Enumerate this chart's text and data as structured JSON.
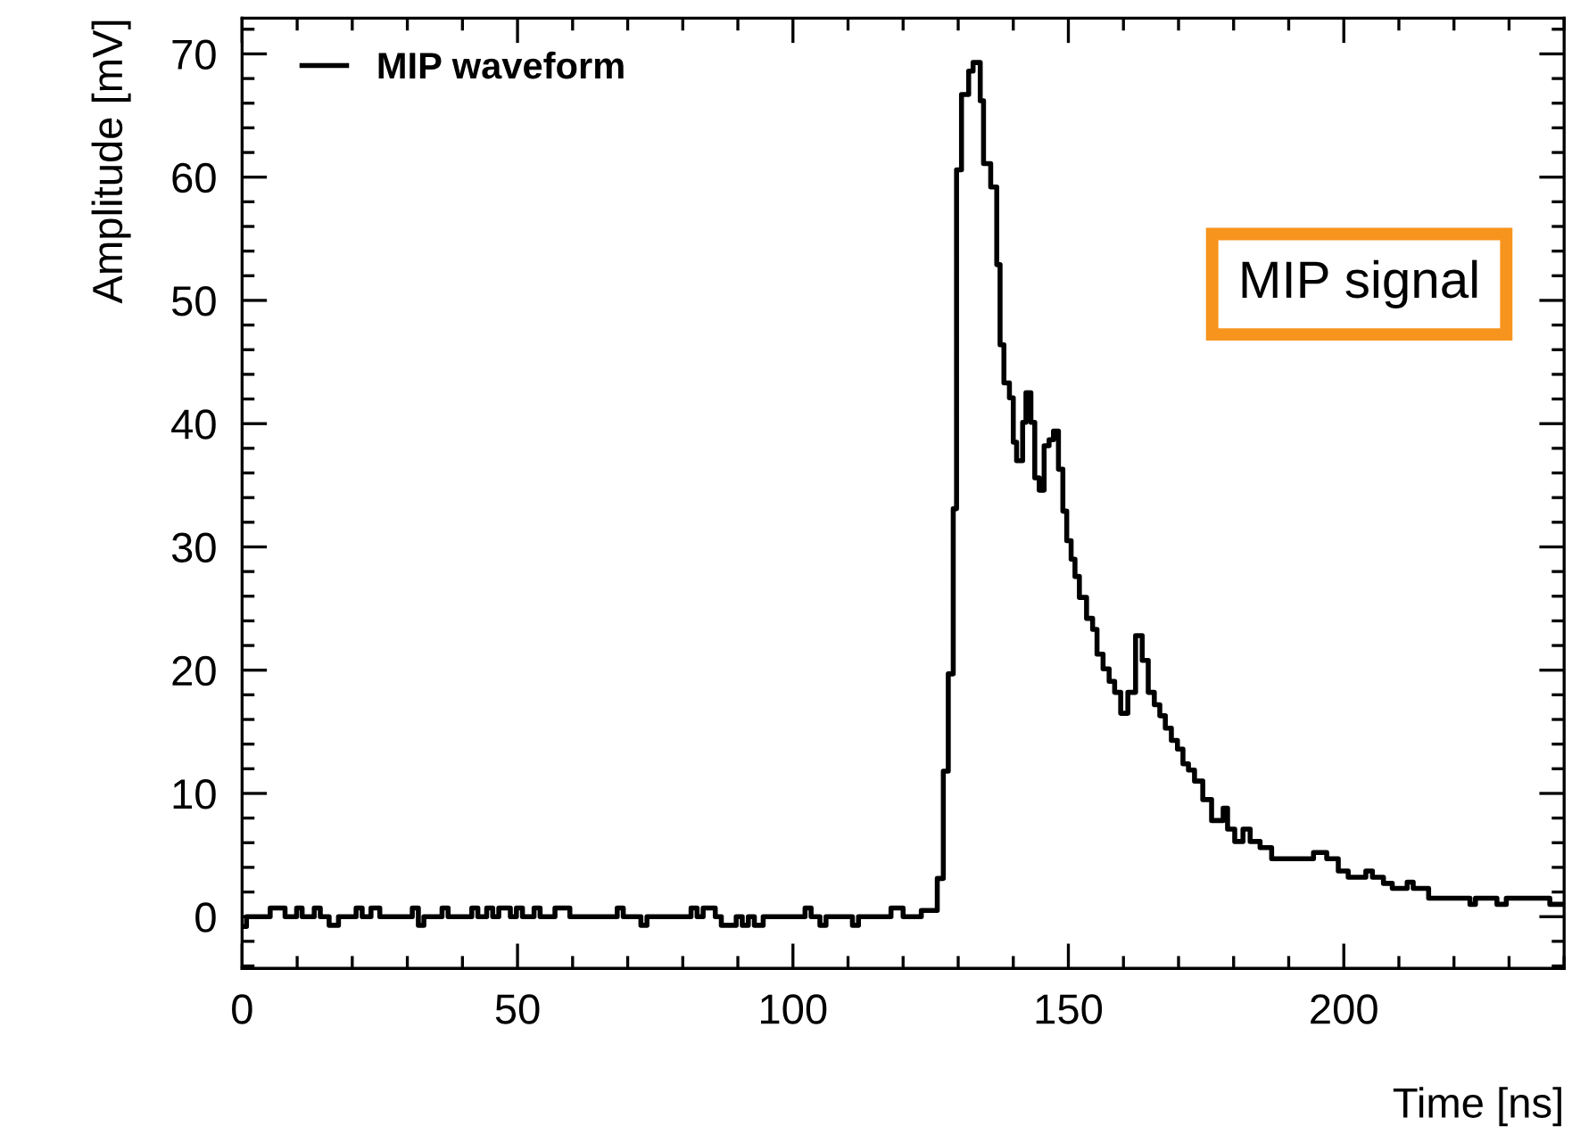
{
  "chart_data": {
    "type": "step",
    "xlabel": "Time [ns]",
    "ylabel": "Amplitude [mV]",
    "x": [
      0,
      0.8,
      5.1,
      7.8,
      9.9,
      10.9,
      13.1,
      14.2,
      15.8,
      17.5,
      20.7,
      21.8,
      23.4,
      25,
      30.9,
      32,
      33,
      36.3,
      37.4,
      41.7,
      42.8,
      44.4,
      45.5,
      46.6,
      48.7,
      49.8,
      50.9,
      53,
      54.1,
      56.8,
      59.5,
      68.1,
      69.2,
      72.4,
      73.5,
      81.5,
      82.6,
      83.7,
      85.9,
      87,
      89.7,
      90.8,
      91.9,
      93,
      94.6,
      102.2,
      103.3,
      104.9,
      106,
      110.8,
      111.9,
      117.8,
      120,
      123.3,
      126.2,
      127.3,
      128.2,
      129.1,
      129.7,
      130.6,
      131.9,
      132.7,
      134,
      134.6,
      135.9,
      137,
      137.6,
      138.3,
      139.3,
      140,
      140.6,
      141.7,
      142.3,
      143.2,
      143.9,
      144.7,
      145.6,
      146.5,
      147.3,
      148.2,
      149,
      149.7,
      150.5,
      151.2,
      152,
      153.3,
      154.4,
      155.2,
      156.3,
      157.4,
      158.4,
      159.5,
      160.8,
      162.2,
      163.4,
      164.5,
      165.6,
      166.6,
      167.6,
      168.7,
      169.8,
      170.8,
      171.8,
      172.9,
      174.4,
      176,
      178.1,
      178.9,
      180.2,
      181.7,
      183,
      184.8,
      186.9,
      194.5,
      196.9,
      199,
      200.8,
      204,
      205.2,
      207.2,
      208.8,
      211.5,
      212.6,
      215.4,
      222.9,
      223.9,
      227.8,
      229.5,
      237.4,
      240
    ],
    "series": [
      {
        "name": "MIP waveform",
        "color": "#000000",
        "values": [
          -0.8,
          0,
          0.7,
          0,
          0.7,
          0,
          0.7,
          0,
          -0.7,
          0,
          0.7,
          0,
          0.7,
          0,
          0.7,
          -0.7,
          0,
          0.7,
          0,
          0.7,
          0,
          0.7,
          0,
          0.7,
          0,
          0.7,
          0,
          0.7,
          0,
          0.7,
          0,
          0.7,
          0,
          -0.7,
          0,
          0.7,
          0,
          0.7,
          0,
          -0.7,
          0,
          -0.7,
          0,
          -0.7,
          0,
          0.7,
          0,
          -0.7,
          0,
          -0.7,
          0,
          0.7,
          0,
          0.5,
          3.1,
          11.8,
          19.7,
          33.1,
          60.6,
          66.7,
          68.6,
          69.3,
          66.2,
          61.1,
          59.2,
          52.9,
          46.4,
          43.3,
          42.1,
          38.5,
          37,
          40.1,
          42.5,
          40.1,
          35.6,
          34.6,
          38.2,
          38.7,
          39.4,
          36.3,
          32.9,
          30.5,
          29,
          27.6,
          25.9,
          24.2,
          23.3,
          21.3,
          20.1,
          19.1,
          18.2,
          16.5,
          18.2,
          22.8,
          20.8,
          18.2,
          17.2,
          16.3,
          15.3,
          14.3,
          13.6,
          12.4,
          11.9,
          11,
          9.5,
          7.8,
          8.8,
          7.1,
          6.1,
          7.1,
          6.1,
          5.6,
          4.7,
          5.2,
          4.7,
          3.7,
          3.2,
          3.7,
          3.2,
          2.7,
          2.3,
          2.8,
          2.3,
          1.5,
          1.0,
          1.5,
          1.0,
          1.5,
          1.0,
          1.0
        ]
      }
    ],
    "xlim": [
      0,
      240
    ],
    "xticks": [
      0,
      50,
      100,
      150,
      200
    ],
    "ylim": [
      -4.2,
      72.9
    ],
    "yticks": [
      0,
      10,
      20,
      30,
      40,
      50,
      60,
      70
    ],
    "legend": "top left",
    "grid": false,
    "annotations": [
      "MIP signal"
    ]
  }
}
